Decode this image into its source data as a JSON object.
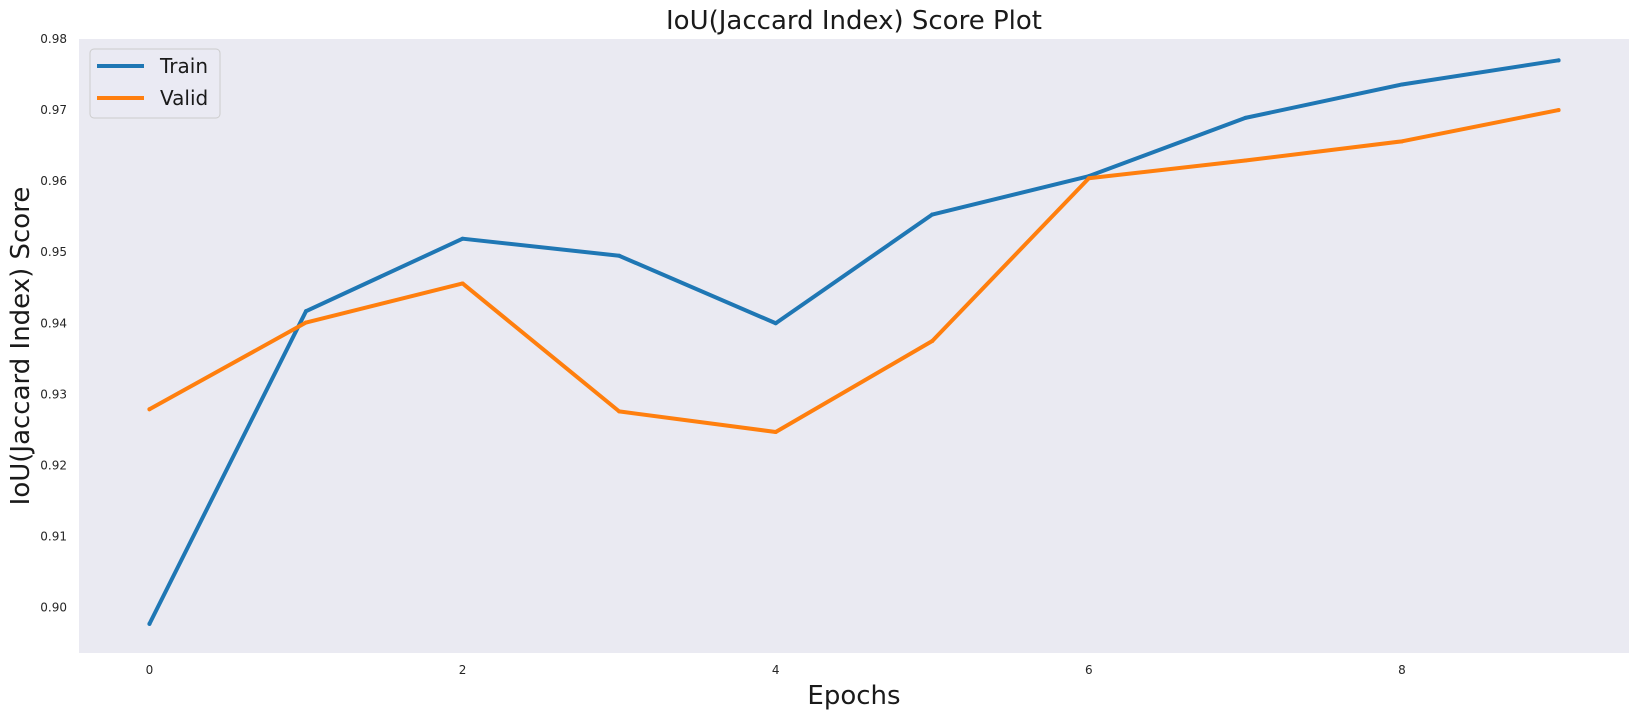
{
  "chart_data": {
    "type": "line",
    "title": "IoU(Jaccard Index) Score Plot",
    "xlabel": "Epochs",
    "ylabel": "IoU(Jaccard Index) Score",
    "x": [
      0,
      1,
      2,
      3,
      4,
      5,
      6,
      7,
      8,
      9
    ],
    "xticks": [
      "0",
      "2",
      "4",
      "6",
      "8"
    ],
    "yticks": [
      "0.90",
      "0.91",
      "0.92",
      "0.93",
      "0.94",
      "0.95",
      "0.96",
      "0.97",
      "0.98"
    ],
    "xlim": [
      -0.45,
      9.45
    ],
    "ylim": [
      0.8936,
      0.98
    ],
    "grid": false,
    "legend_position": "top-left",
    "background_color": "#eaeaf2",
    "series": [
      {
        "name": "Train",
        "color": "#1f77b4",
        "values": [
          0.8977,
          0.9417,
          0.9519,
          0.9495,
          0.94,
          0.9553,
          0.9607,
          0.9689,
          0.9736,
          0.977
        ]
      },
      {
        "name": "Valid",
        "color": "#ff7f0e",
        "values": [
          0.9279,
          0.9401,
          0.9456,
          0.9276,
          0.9247,
          0.9375,
          0.9604,
          0.9629,
          0.9656,
          0.97
        ]
      }
    ]
  }
}
